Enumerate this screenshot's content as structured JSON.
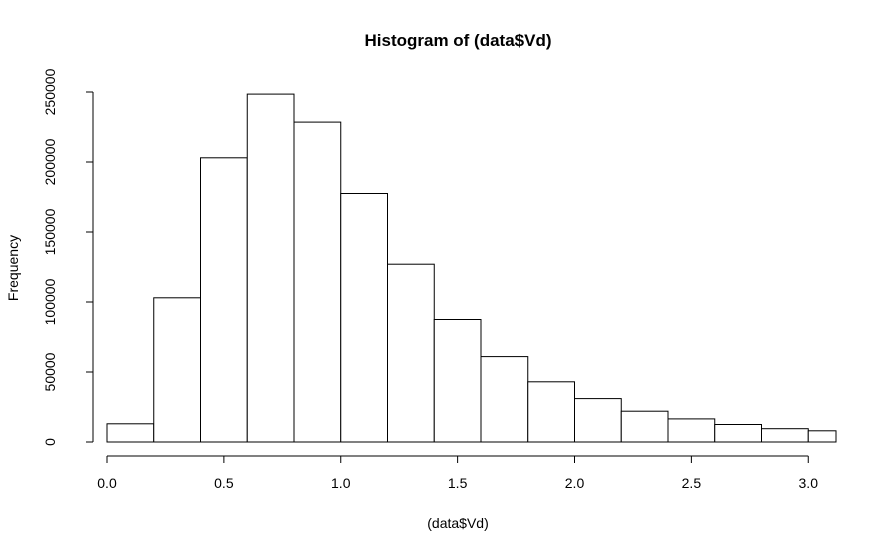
{
  "chart_data": {
    "type": "bar",
    "title": "Histogram of (data$Vd)",
    "xlabel": "(data$Vd)",
    "ylabel": "Frequency",
    "bin_edges": [
      0.0,
      0.2,
      0.4,
      0.6,
      0.8,
      1.0,
      1.2,
      1.4,
      1.6,
      1.8,
      2.0,
      2.2,
      2.4,
      2.6,
      2.8,
      3.0,
      3.2
    ],
    "values": [
      13000,
      103000,
      203000,
      248500,
      228500,
      177500,
      127000,
      87500,
      61000,
      43000,
      31000,
      22000,
      16500,
      12500,
      9500,
      8000
    ],
    "xlim": [
      0.0,
      3.2
    ],
    "ylim": [
      0,
      250000
    ],
    "x_ticks": [
      "0.0",
      "0.5",
      "1.0",
      "1.5",
      "2.0",
      "2.5",
      "3.0"
    ],
    "y_ticks": [
      "0",
      "50000",
      "100000",
      "150000",
      "200000",
      "250000"
    ],
    "grid": false,
    "legend": "none",
    "colors": {
      "bar_fill": "#ffffff",
      "bar_stroke": "#000000"
    }
  }
}
